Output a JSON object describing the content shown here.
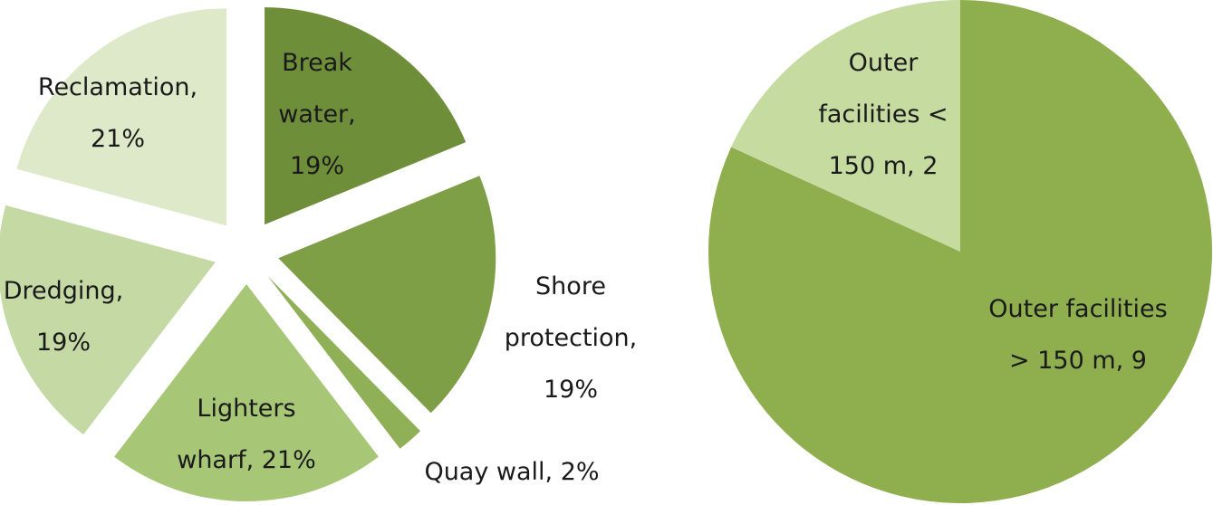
{
  "chart_data": [
    {
      "type": "pie",
      "title": "",
      "slices": [
        {
          "name": "Break water",
          "value": 19,
          "color": "#6f8e3a",
          "label_lines": [
            "Break",
            "water,",
            "19%"
          ]
        },
        {
          "name": "Shore protection",
          "value": 19,
          "color": "#7f9f47",
          "label_lines": [
            "Shore",
            "protection,",
            "19%"
          ]
        },
        {
          "name": "Quay wall",
          "value": 2,
          "color": "#8fb056",
          "label_lines": [
            "Quay wall, 2%"
          ]
        },
        {
          "name": "Lighters wharf",
          "value": 21,
          "color": "#a7c777",
          "label_lines": [
            "Lighters",
            "wharf, 21%"
          ]
        },
        {
          "name": "Dredging",
          "value": 19,
          "color": "#c4d9a4",
          "label_lines": [
            "Dredging,",
            "19%"
          ]
        },
        {
          "name": "Reclamation",
          "value": 21,
          "color": "#dde9c9",
          "label_lines": [
            "Reclamation,",
            "21%"
          ]
        }
      ],
      "start_angle_deg": 0,
      "direction": "clockwise",
      "exploded": true
    },
    {
      "type": "pie",
      "title": "",
      "slices": [
        {
          "name": "Outer facilities > 150 m",
          "value": 9,
          "color": "#8fae4e",
          "label_lines": [
            "Outer facilities",
            "> 150 m, 9"
          ]
        },
        {
          "name": "Outer facilities < 150 m",
          "value": 2,
          "color": "#c6dba0",
          "label_lines": [
            "Outer",
            "facilities <",
            "150 m, 2"
          ]
        }
      ],
      "start_angle_deg": 0,
      "direction": "clockwise",
      "exploded": false
    }
  ]
}
